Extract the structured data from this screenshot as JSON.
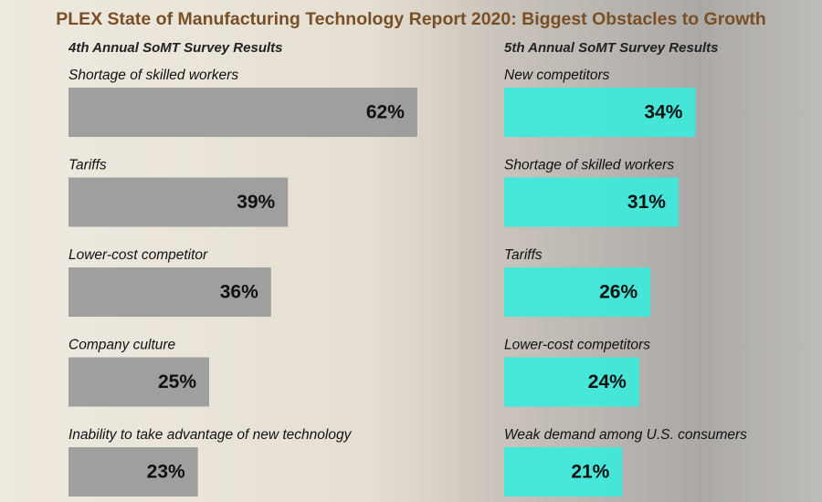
{
  "title": "PLEX State of Manufacturing Technology Report 2020: Biggest Obstacles to Growth",
  "chart_data": [
    {
      "type": "bar",
      "orientation": "horizontal",
      "subtitle": "4th Annual SoMT Survey Results",
      "color": "#9b9b9b",
      "categories": [
        "Shortage of skilled workers",
        "Tariffs",
        "Lower-cost competitor",
        "Company culture",
        "Inability to take advantage of new technology"
      ],
      "values": [
        62,
        39,
        36,
        25,
        23
      ],
      "value_labels": [
        "62%",
        "39%",
        "36%",
        "25%",
        "23%"
      ]
    },
    {
      "type": "bar",
      "orientation": "horizontal",
      "subtitle": "5th Annual SoMT Survey Results",
      "color": "#3fe8da",
      "categories": [
        "New competitors",
        "Shortage of skilled workers",
        "Tariffs",
        "Lower-cost competitors",
        "Weak demand among U.S. consumers"
      ],
      "values": [
        34,
        31,
        26,
        24,
        21
      ],
      "value_labels": [
        "34%",
        "31%",
        "26%",
        "24%",
        "21%"
      ]
    }
  ]
}
